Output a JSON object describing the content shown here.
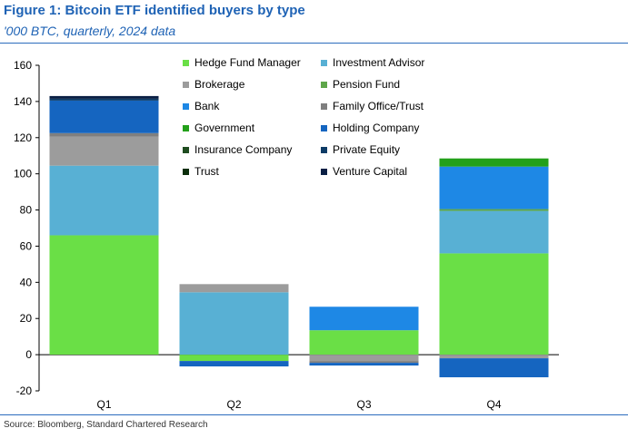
{
  "figure": {
    "title": "Figure 1: Bitcoin ETF identified buyers by type",
    "subtitle": "'000 BTC, quarterly, 2024 data",
    "source": "Source: Bloomberg, Standard Chartered Research"
  },
  "chart_data": {
    "type": "bar",
    "stacked": true,
    "categories": [
      "Q1",
      "Q2",
      "Q3",
      "Q4"
    ],
    "ylim": [
      -20,
      160
    ],
    "yticks": [
      -20,
      0,
      20,
      40,
      60,
      80,
      100,
      120,
      140,
      160
    ],
    "grid": false,
    "legend_position": "top-center",
    "series": [
      {
        "name": "Hedge Fund Manager",
        "color": "#6adf46",
        "values": [
          66,
          -3.5,
          13.5,
          56
        ]
      },
      {
        "name": "Investment Advisor",
        "color": "#58b0d4",
        "values": [
          38.5,
          34.5,
          0,
          23.5
        ]
      },
      {
        "name": "Brokerage",
        "color": "#9c9c9c",
        "values": [
          16,
          4.5,
          -3.5,
          -2
        ]
      },
      {
        "name": "Pension Fund",
        "color": "#5ea64a",
        "values": [
          0,
          0,
          0,
          1
        ]
      },
      {
        "name": "Bank",
        "color": "#1e88e5",
        "values": [
          0,
          0,
          13,
          23.5
        ]
      },
      {
        "name": "Family Office/Trust",
        "color": "#7f7f7f",
        "values": [
          2,
          0,
          -1,
          0
        ]
      },
      {
        "name": "Government",
        "color": "#23a01a",
        "values": [
          0,
          0,
          0,
          4.5
        ]
      },
      {
        "name": "Holding Company",
        "color": "#1565c0",
        "values": [
          18,
          -3,
          -1.5,
          -10.5
        ]
      },
      {
        "name": "Insurance Company",
        "color": "#1f4d20",
        "values": [
          0,
          0,
          0,
          0
        ]
      },
      {
        "name": "Private Equity",
        "color": "#0d3b66",
        "values": [
          1,
          0,
          0,
          0
        ]
      },
      {
        "name": "Trust",
        "color": "#0b2e0b",
        "values": [
          0,
          0,
          0,
          0
        ]
      },
      {
        "name": "Venture Capital",
        "color": "#0a1f44",
        "values": [
          1.5,
          0,
          0,
          0
        ]
      }
    ]
  }
}
